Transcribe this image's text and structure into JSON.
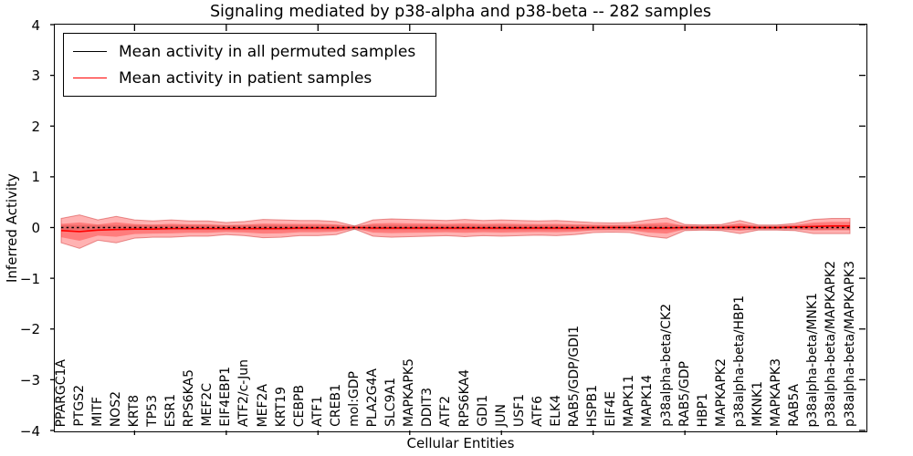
{
  "title": "Signaling mediated by p38-alpha and p38-beta -- 282 samples",
  "axes": {
    "ylabel": "Inferred Activity",
    "xlabel": "Cellular Entities",
    "ytick_labels": [
      "4",
      "3",
      "2",
      "1",
      "0",
      "−1",
      "−2",
      "−3",
      "−4"
    ]
  },
  "legend": {
    "items": [
      {
        "label": "Mean activity in all permuted samples",
        "color": "#000000"
      },
      {
        "label": "Mean activity in patient samples",
        "color": "#ff0000"
      }
    ]
  },
  "chart_data": {
    "type": "line",
    "title": "Signaling mediated by p38-alpha and p38-beta -- 282 samples",
    "xlabel": "Cellular Entities",
    "ylabel": "Inferred Activity",
    "ylim": [
      -4,
      4
    ],
    "grid": false,
    "legend_position": "upper left",
    "x_major_tick_step": 5,
    "categories": [
      "PPARGC1A",
      "PTGS2",
      "MITF",
      "NOS2",
      "KRT8",
      "TP53",
      "ESR1",
      "RPS6KA5",
      "MEF2C",
      "EIF4EBP1",
      "ATF2/c-Jun",
      "MEF2A",
      "KRT19",
      "CEBPB",
      "ATF1",
      "CREB1",
      "mol:GDP",
      "PLA2G4A",
      "SLC9A1",
      "MAPKAPK5",
      "DDIT3",
      "ATF2",
      "RPS6KA4",
      "GDI1",
      "JUN",
      "USF1",
      "ATF6",
      "ELK4",
      "RAB5/GDP/GDI1",
      "HSPB1",
      "EIF4E",
      "MAPK11",
      "MAPK14",
      "p38alpha-beta/CK2",
      "RAB5/GDP",
      "HBP1",
      "MAPKAPK2",
      "p38alpha-beta/HBP1",
      "MKNK1",
      "MAPKAPK3",
      "RAB5A",
      "p38alpha-beta/MNK1",
      "p38alpha-beta/MAPKAPK2",
      "p38alpha-beta/MAPKAPK3"
    ],
    "series": [
      {
        "name": "Mean activity in all permuted samples",
        "role": "permuted_mean",
        "color": "#000000",
        "line_style": "dashed",
        "values": [
          0,
          0,
          0,
          0,
          0,
          0,
          0,
          0,
          0,
          0,
          0,
          0,
          0,
          0,
          0,
          0,
          0,
          0,
          0,
          0,
          0,
          0,
          0,
          0,
          0,
          0,
          0,
          0,
          0,
          0,
          0,
          0,
          0,
          0,
          0,
          0,
          0,
          0,
          0,
          0,
          0,
          0,
          0,
          0
        ]
      },
      {
        "name": "Mean activity in patient samples",
        "role": "patient_mean",
        "color": "#ff0000",
        "line_style": "solid",
        "values": [
          -0.06,
          -0.08,
          -0.05,
          -0.04,
          -0.03,
          -0.03,
          -0.02,
          -0.02,
          -0.02,
          -0.02,
          -0.02,
          -0.02,
          -0.02,
          -0.01,
          -0.01,
          -0.01,
          0,
          -0.01,
          -0.01,
          -0.01,
          -0.01,
          -0.01,
          -0.01,
          -0.01,
          -0.01,
          -0.01,
          -0.01,
          -0.01,
          -0.01,
          0,
          0,
          0,
          -0.01,
          -0.01,
          0,
          0,
          0,
          0.01,
          0,
          0,
          0.01,
          0.02,
          0.03,
          0.03
        ]
      },
      {
        "role": "patient_std_band",
        "color": "rgba(255,0,0,0.30)",
        "edge_color": "rgba(205,30,30,0.45)",
        "half_widths": [
          0.24,
          0.33,
          0.2,
          0.26,
          0.18,
          0.16,
          0.17,
          0.15,
          0.15,
          0.12,
          0.14,
          0.18,
          0.17,
          0.15,
          0.15,
          0.13,
          0.03,
          0.16,
          0.18,
          0.17,
          0.16,
          0.15,
          0.17,
          0.15,
          0.16,
          0.15,
          0.14,
          0.15,
          0.13,
          0.1,
          0.09,
          0.1,
          0.16,
          0.2,
          0.06,
          0.05,
          0.06,
          0.13,
          0.05,
          0.05,
          0.07,
          0.14,
          0.15,
          0.15
        ],
        "inner_band_scale": 0.55
      },
      {
        "role": "permuted_std_band",
        "color": "rgba(128,128,128,0.28)",
        "half_width": 0.05
      }
    ]
  }
}
